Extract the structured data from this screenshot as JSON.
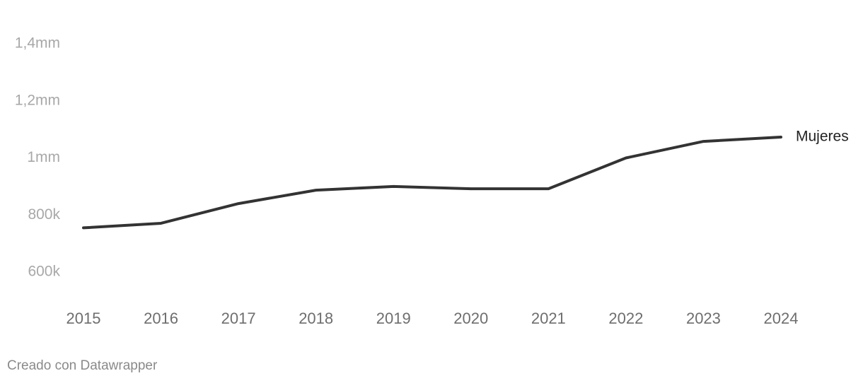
{
  "chart_data": {
    "type": "line",
    "categories": [
      "2015",
      "2016",
      "2017",
      "2018",
      "2019",
      "2020",
      "2021",
      "2022",
      "2023",
      "2024"
    ],
    "series": [
      {
        "name": "Mujeres",
        "color": "#333333",
        "values": [
          755000,
          771000,
          840000,
          887000,
          900000,
          892000,
          892000,
          1000000,
          1058000,
          1073000
        ]
      }
    ],
    "ylim": [
      600000,
      1400000
    ],
    "yticks": [
      {
        "value": 600000,
        "label": "600k"
      },
      {
        "value": 800000,
        "label": "800k"
      },
      {
        "value": 1000000,
        "label": "1mm"
      },
      {
        "value": 1200000,
        "label": "1,2mm"
      },
      {
        "value": 1400000,
        "label": "1,4mm"
      }
    ],
    "grid": false,
    "footer": "Creado con Datawrapper"
  }
}
